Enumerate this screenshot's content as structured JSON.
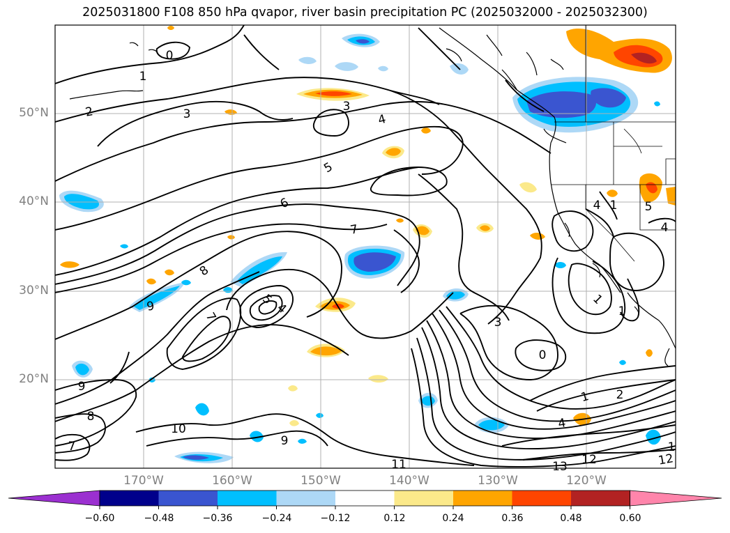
{
  "title": "2025031800 F108 850 hPa qvapor, river basin precipitation PC (2025032000 - 2025032300)",
  "axes": {
    "lat_ticks": [
      "50°N",
      "40°N",
      "30°N",
      "20°N"
    ],
    "lon_ticks": [
      "170°W",
      "160°W",
      "150°W",
      "140°W",
      "130°W",
      "120°W"
    ]
  },
  "contour_labels": [
    "0",
    "1",
    "2",
    "3",
    "3",
    "4",
    "5",
    "6",
    "7",
    "8",
    "9",
    "5",
    "4",
    "7",
    "3",
    "0",
    "1",
    "2",
    "4",
    "1",
    "1",
    "4",
    "5",
    "9",
    "8",
    "7",
    "10",
    "9",
    "11",
    "13",
    "12",
    "12",
    "1",
    "1",
    "4"
  ],
  "colorbar": {
    "ticks": [
      "−0.60",
      "−0.48",
      "−0.36",
      "−0.24",
      "−0.12",
      "0.12",
      "0.24",
      "0.36",
      "0.48",
      "0.60"
    ],
    "colors": [
      "#9b30d0",
      "#00008b",
      "#3a55d0",
      "#00bfff",
      "#add8f6",
      "#ffffff",
      "#fbe98a",
      "#ffa500",
      "#ff4500",
      "#b22222",
      "#ff85ab",
      "#ff85ab"
    ],
    "extend": "both"
  }
}
